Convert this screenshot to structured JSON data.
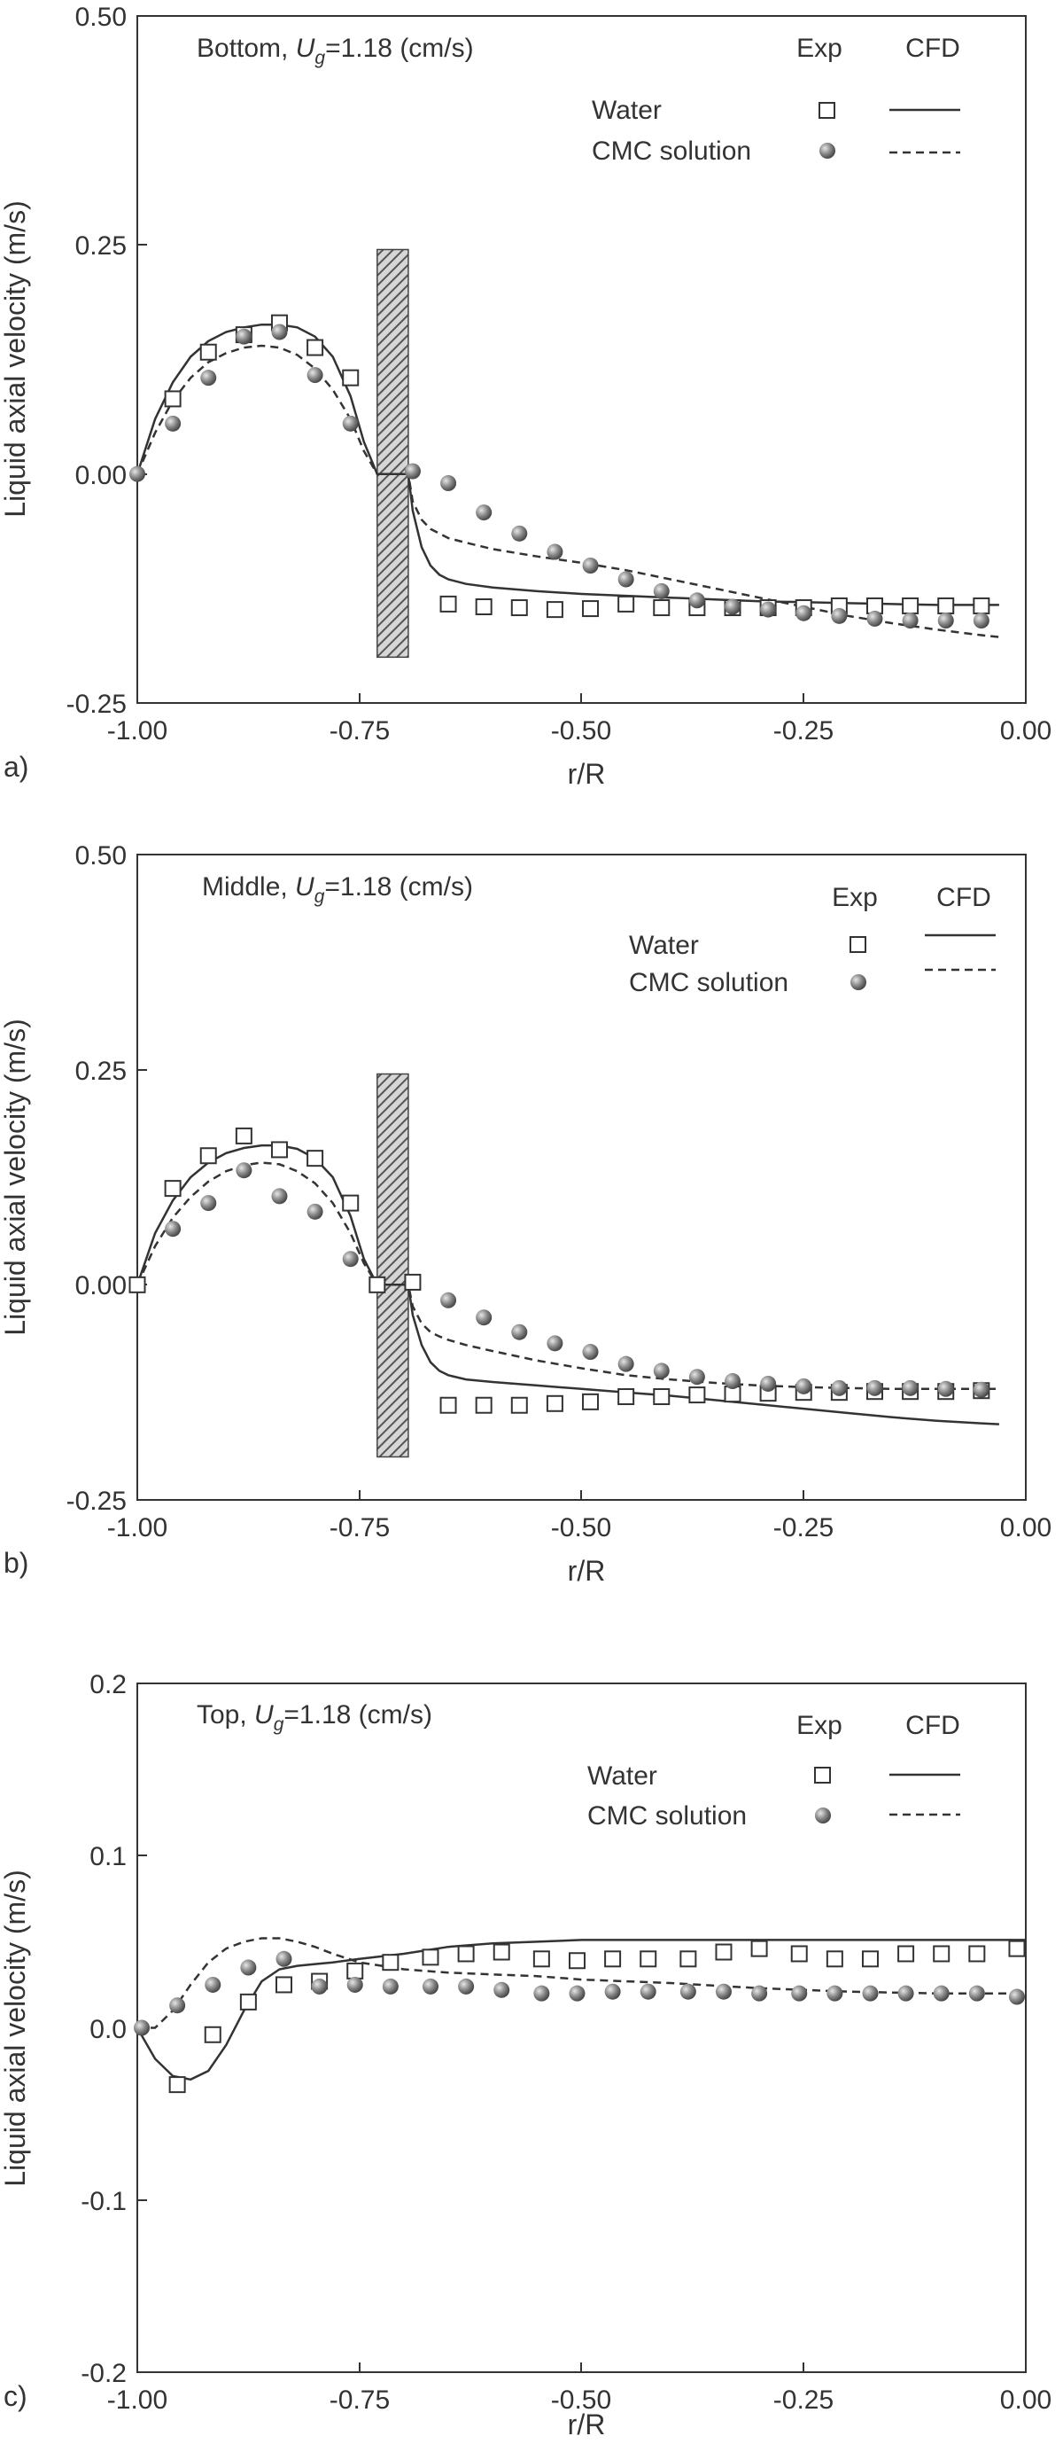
{
  "figure": {
    "panels": [
      {
        "panel_label": "a)",
        "title_prefix": "Bottom, ",
        "title_var": "U",
        "title_sub": "g",
        "title_suffix": "=1.18 (cm/s)",
        "col_exp": "Exp",
        "col_cfd": "CFD",
        "legend_water": "Water",
        "legend_cmc": "CMC solution"
      },
      {
        "panel_label": "b)",
        "title_prefix": "Middle, ",
        "title_var": "U",
        "title_sub": "g",
        "title_suffix": "=1.18 (cm/s)",
        "col_exp": "Exp",
        "col_cfd": "CFD",
        "legend_water": "Water",
        "legend_cmc": "CMC solution"
      },
      {
        "panel_label": "c)",
        "title_prefix": "Top, ",
        "title_var": "U",
        "title_sub": "g",
        "title_suffix": "=1.18 (cm/s)",
        "col_exp": "Exp",
        "col_cfd": "CFD",
        "legend_water": "Water",
        "legend_cmc": "CMC solution"
      }
    ]
  },
  "colors": {
    "axis": "#333333",
    "water_marker_edge": "#333333",
    "cmc_marker": "#8a8a8a",
    "hatch": "#555555"
  },
  "chart_data": [
    {
      "type": "scatter",
      "title": "Bottom, Ug=1.18 (cm/s)",
      "xlabel": "r/R",
      "ylabel": "Liquid axial velocity (m/s)",
      "xlim": [
        -1.0,
        0.0
      ],
      "ylim": [
        -0.25,
        0.5
      ],
      "xticks": [
        -1.0,
        -0.75,
        -0.5,
        -0.25,
        0.0
      ],
      "xtick_labels": [
        "-1.00",
        "-0.75",
        "-0.50",
        "-0.25",
        "0.00"
      ],
      "yticks": [
        -0.25,
        0.0,
        0.25,
        0.5
      ],
      "ytick_labels": [
        "-0.25",
        "0.00",
        "0.25",
        "0.50"
      ],
      "hatch_band": {
        "x": [
          -0.73,
          -0.695
        ],
        "y": [
          -0.2,
          0.245
        ]
      },
      "series": [
        {
          "name": "Water Exp",
          "marker": "square",
          "x": [
            -0.96,
            -0.92,
            -0.88,
            -0.84,
            -0.8,
            -0.76,
            -0.65,
            -0.61,
            -0.57,
            -0.53,
            -0.49,
            -0.45,
            -0.41,
            -0.37,
            -0.33,
            -0.29,
            -0.25,
            -0.21,
            -0.17,
            -0.13,
            -0.09,
            -0.05
          ],
          "y": [
            0.082,
            0.133,
            0.152,
            0.165,
            0.138,
            0.105,
            -0.142,
            -0.145,
            -0.146,
            -0.148,
            -0.147,
            -0.142,
            -0.146,
            -0.146,
            -0.146,
            -0.146,
            -0.146,
            -0.144,
            -0.144,
            -0.144,
            -0.144,
            -0.144
          ]
        },
        {
          "name": "CMC solution Exp",
          "marker": "sphere",
          "x": [
            -1.0,
            -0.96,
            -0.92,
            -0.88,
            -0.84,
            -0.8,
            -0.76,
            -0.69,
            -0.65,
            -0.61,
            -0.57,
            -0.53,
            -0.49,
            -0.45,
            -0.41,
            -0.37,
            -0.33,
            -0.29,
            -0.25,
            -0.21,
            -0.17,
            -0.13,
            -0.09,
            -0.05
          ],
          "y": [
            0.0,
            0.055,
            0.105,
            0.15,
            0.155,
            0.108,
            0.055,
            0.003,
            -0.01,
            -0.042,
            -0.065,
            -0.085,
            -0.1,
            -0.115,
            -0.128,
            -0.138,
            -0.145,
            -0.148,
            -0.152,
            -0.155,
            -0.158,
            -0.16,
            -0.16,
            -0.16
          ]
        },
        {
          "name": "Water CFD",
          "line": "solid",
          "x": [
            -1.0,
            -0.98,
            -0.96,
            -0.94,
            -0.92,
            -0.9,
            -0.88,
            -0.86,
            -0.84,
            -0.82,
            -0.8,
            -0.78,
            -0.76,
            -0.745,
            -0.73,
            -0.695,
            -0.69,
            -0.68,
            -0.67,
            -0.66,
            -0.65,
            -0.63,
            -0.6,
            -0.55,
            -0.5,
            -0.45,
            -0.4,
            -0.35,
            -0.3,
            -0.25,
            -0.2,
            -0.15,
            -0.1,
            -0.05,
            -0.03
          ],
          "y": [
            0.0,
            0.06,
            0.1,
            0.128,
            0.145,
            0.155,
            0.16,
            0.163,
            0.163,
            0.16,
            0.15,
            0.128,
            0.085,
            0.035,
            0.0,
            0.0,
            -0.04,
            -0.08,
            -0.1,
            -0.11,
            -0.115,
            -0.12,
            -0.124,
            -0.128,
            -0.131,
            -0.133,
            -0.135,
            -0.137,
            -0.139,
            -0.14,
            -0.141,
            -0.142,
            -0.143,
            -0.143,
            -0.143
          ]
        },
        {
          "name": "CMC solution CFD",
          "line": "dashed",
          "x": [
            -1.0,
            -0.98,
            -0.96,
            -0.94,
            -0.92,
            -0.9,
            -0.88,
            -0.86,
            -0.84,
            -0.82,
            -0.8,
            -0.78,
            -0.76,
            -0.745,
            -0.73,
            -0.695,
            -0.69,
            -0.68,
            -0.67,
            -0.66,
            -0.65,
            -0.63,
            -0.6,
            -0.55,
            -0.5,
            -0.45,
            -0.4,
            -0.35,
            -0.3,
            -0.25,
            -0.2,
            -0.15,
            -0.1,
            -0.05,
            -0.03
          ],
          "y": [
            0.0,
            0.045,
            0.08,
            0.105,
            0.122,
            0.132,
            0.138,
            0.14,
            0.138,
            0.13,
            0.115,
            0.092,
            0.06,
            0.025,
            0.0,
            0.0,
            -0.03,
            -0.05,
            -0.06,
            -0.065,
            -0.07,
            -0.075,
            -0.082,
            -0.09,
            -0.097,
            -0.105,
            -0.115,
            -0.125,
            -0.135,
            -0.145,
            -0.155,
            -0.163,
            -0.17,
            -0.176,
            -0.178
          ]
        }
      ]
    },
    {
      "type": "scatter",
      "title": "Middle, Ug=1.18 (cm/s)",
      "xlabel": "r/R",
      "ylabel": "Liquid axial velocity (m/s)",
      "xlim": [
        -1.0,
        0.0
      ],
      "ylim": [
        -0.25,
        0.5
      ],
      "xticks": [
        -1.0,
        -0.75,
        -0.5,
        -0.25,
        0.0
      ],
      "xtick_labels": [
        "-1.00",
        "-0.75",
        "-0.50",
        "-0.25",
        "0.00"
      ],
      "yticks": [
        -0.25,
        0.0,
        0.25,
        0.5
      ],
      "ytick_labels": [
        "-0.25",
        "0.00",
        "0.25",
        "0.50"
      ],
      "hatch_band": {
        "x": [
          -0.73,
          -0.695
        ],
        "y": [
          -0.2,
          0.245
        ]
      },
      "series": [
        {
          "name": "Water Exp",
          "marker": "square",
          "x": [
            -1.0,
            -0.96,
            -0.92,
            -0.88,
            -0.84,
            -0.8,
            -0.76,
            -0.73,
            -0.69,
            -0.65,
            -0.61,
            -0.57,
            -0.53,
            -0.49,
            -0.45,
            -0.41,
            -0.37,
            -0.33,
            -0.29,
            -0.25,
            -0.21,
            -0.17,
            -0.13,
            -0.09,
            -0.05
          ],
          "y": [
            0.0,
            0.112,
            0.15,
            0.173,
            0.157,
            0.147,
            0.095,
            0.0,
            0.003,
            -0.14,
            -0.14,
            -0.14,
            -0.138,
            -0.136,
            -0.13,
            -0.13,
            -0.128,
            -0.127,
            -0.126,
            -0.125,
            -0.125,
            -0.124,
            -0.124,
            -0.124,
            -0.123
          ]
        },
        {
          "name": "CMC solution Exp",
          "marker": "sphere",
          "x": [
            -0.96,
            -0.92,
            -0.88,
            -0.84,
            -0.8,
            -0.76,
            -0.65,
            -0.61,
            -0.57,
            -0.53,
            -0.49,
            -0.45,
            -0.41,
            -0.37,
            -0.33,
            -0.29,
            -0.25,
            -0.21,
            -0.17,
            -0.13,
            -0.09,
            -0.05
          ],
          "y": [
            0.065,
            0.095,
            0.133,
            0.103,
            0.085,
            0.03,
            -0.018,
            -0.038,
            -0.055,
            -0.068,
            -0.078,
            -0.092,
            -0.1,
            -0.107,
            -0.112,
            -0.115,
            -0.118,
            -0.12,
            -0.12,
            -0.12,
            -0.121,
            -0.122
          ]
        },
        {
          "name": "Water CFD",
          "line": "solid",
          "x": [
            -1.0,
            -0.98,
            -0.96,
            -0.94,
            -0.92,
            -0.9,
            -0.88,
            -0.86,
            -0.84,
            -0.82,
            -0.8,
            -0.78,
            -0.76,
            -0.745,
            -0.73,
            -0.695,
            -0.69,
            -0.68,
            -0.67,
            -0.66,
            -0.65,
            -0.63,
            -0.6,
            -0.55,
            -0.5,
            -0.45,
            -0.4,
            -0.35,
            -0.3,
            -0.25,
            -0.2,
            -0.15,
            -0.1,
            -0.05,
            -0.03
          ],
          "y": [
            0.0,
            0.06,
            0.098,
            0.125,
            0.142,
            0.153,
            0.159,
            0.162,
            0.162,
            0.158,
            0.147,
            0.125,
            0.08,
            0.03,
            0.0,
            0.0,
            -0.035,
            -0.07,
            -0.09,
            -0.1,
            -0.105,
            -0.11,
            -0.113,
            -0.117,
            -0.121,
            -0.125,
            -0.129,
            -0.134,
            -0.139,
            -0.144,
            -0.149,
            -0.154,
            -0.158,
            -0.161,
            -0.162
          ]
        },
        {
          "name": "CMC solution CFD",
          "line": "dashed",
          "x": [
            -1.0,
            -0.98,
            -0.96,
            -0.94,
            -0.92,
            -0.9,
            -0.88,
            -0.86,
            -0.84,
            -0.82,
            -0.8,
            -0.78,
            -0.76,
            -0.745,
            -0.73,
            -0.695,
            -0.69,
            -0.68,
            -0.67,
            -0.66,
            -0.65,
            -0.63,
            -0.6,
            -0.55,
            -0.5,
            -0.45,
            -0.4,
            -0.35,
            -0.3,
            -0.25,
            -0.2,
            -0.15,
            -0.1,
            -0.05,
            -0.03
          ],
          "y": [
            0.0,
            0.045,
            0.078,
            0.102,
            0.12,
            0.132,
            0.139,
            0.142,
            0.14,
            0.132,
            0.118,
            0.095,
            0.06,
            0.025,
            0.0,
            0.0,
            -0.025,
            -0.045,
            -0.055,
            -0.06,
            -0.064,
            -0.07,
            -0.077,
            -0.088,
            -0.097,
            -0.105,
            -0.11,
            -0.114,
            -0.117,
            -0.119,
            -0.12,
            -0.121,
            -0.121,
            -0.121,
            -0.121
          ]
        }
      ]
    },
    {
      "type": "scatter",
      "title": "Top, Ug=1.18 (cm/s)",
      "xlabel": "r/R",
      "ylabel": "Liquid axial velocity (m/s)",
      "xlim": [
        -1.0,
        0.0
      ],
      "ylim": [
        -0.2,
        0.2
      ],
      "xticks": [
        -1.0,
        -0.75,
        -0.5,
        -0.25,
        0.0
      ],
      "xtick_labels": [
        "-1.00",
        "-0.75",
        "-0.50",
        "-0.25",
        "0.00"
      ],
      "yticks": [
        -0.2,
        -0.1,
        0.0,
        0.1,
        0.2
      ],
      "ytick_labels": [
        "-0.2",
        "-0.1",
        "0.0",
        "0.1",
        "0.2"
      ],
      "series": [
        {
          "name": "Water Exp",
          "marker": "square",
          "x": [
            -0.955,
            -0.915,
            -0.875,
            -0.835,
            -0.795,
            -0.755,
            -0.715,
            -0.67,
            -0.63,
            -0.59,
            -0.545,
            -0.505,
            -0.465,
            -0.425,
            -0.38,
            -0.34,
            -0.3,
            -0.255,
            -0.215,
            -0.175,
            -0.135,
            -0.095,
            -0.055,
            -0.01
          ],
          "y": [
            -0.033,
            -0.004,
            0.015,
            0.025,
            0.027,
            0.033,
            0.038,
            0.041,
            0.043,
            0.044,
            0.04,
            0.039,
            0.04,
            0.04,
            0.04,
            0.044,
            0.046,
            0.043,
            0.04,
            0.04,
            0.043,
            0.043,
            0.043,
            0.046
          ]
        },
        {
          "name": "CMC solution Exp",
          "marker": "sphere",
          "x": [
            -0.995,
            -0.955,
            -0.915,
            -0.875,
            -0.835,
            -0.795,
            -0.755,
            -0.715,
            -0.67,
            -0.63,
            -0.59,
            -0.545,
            -0.505,
            -0.465,
            -0.425,
            -0.38,
            -0.34,
            -0.3,
            -0.255,
            -0.215,
            -0.175,
            -0.135,
            -0.095,
            -0.055,
            -0.01
          ],
          "y": [
            0.0,
            0.013,
            0.025,
            0.035,
            0.04,
            0.024,
            0.025,
            0.024,
            0.024,
            0.024,
            0.022,
            0.02,
            0.02,
            0.021,
            0.021,
            0.021,
            0.021,
            0.02,
            0.02,
            0.02,
            0.02,
            0.02,
            0.02,
            0.02,
            0.018
          ]
        },
        {
          "name": "Water CFD",
          "line": "solid",
          "x": [
            -1.0,
            -0.98,
            -0.96,
            -0.94,
            -0.92,
            -0.9,
            -0.88,
            -0.86,
            -0.84,
            -0.82,
            -0.8,
            -0.78,
            -0.75,
            -0.7,
            -0.65,
            -0.6,
            -0.55,
            -0.5,
            -0.4,
            -0.3,
            -0.2,
            -0.1,
            0.0
          ],
          "y": [
            0.0,
            -0.018,
            -0.028,
            -0.03,
            -0.025,
            -0.01,
            0.01,
            0.027,
            0.034,
            0.036,
            0.037,
            0.038,
            0.04,
            0.043,
            0.047,
            0.049,
            0.05,
            0.051,
            0.051,
            0.051,
            0.051,
            0.051,
            0.051
          ]
        },
        {
          "name": "CMC solution CFD",
          "line": "dashed",
          "x": [
            -1.0,
            -0.98,
            -0.96,
            -0.94,
            -0.92,
            -0.9,
            -0.88,
            -0.86,
            -0.84,
            -0.82,
            -0.8,
            -0.78,
            -0.75,
            -0.7,
            -0.65,
            -0.6,
            -0.55,
            -0.5,
            -0.4,
            -0.3,
            -0.2,
            -0.1,
            0.0
          ],
          "y": [
            0.0,
            0.0,
            0.01,
            0.025,
            0.038,
            0.046,
            0.05,
            0.052,
            0.052,
            0.05,
            0.047,
            0.043,
            0.038,
            0.034,
            0.032,
            0.031,
            0.03,
            0.028,
            0.026,
            0.023,
            0.021,
            0.02,
            0.02
          ]
        }
      ]
    }
  ]
}
